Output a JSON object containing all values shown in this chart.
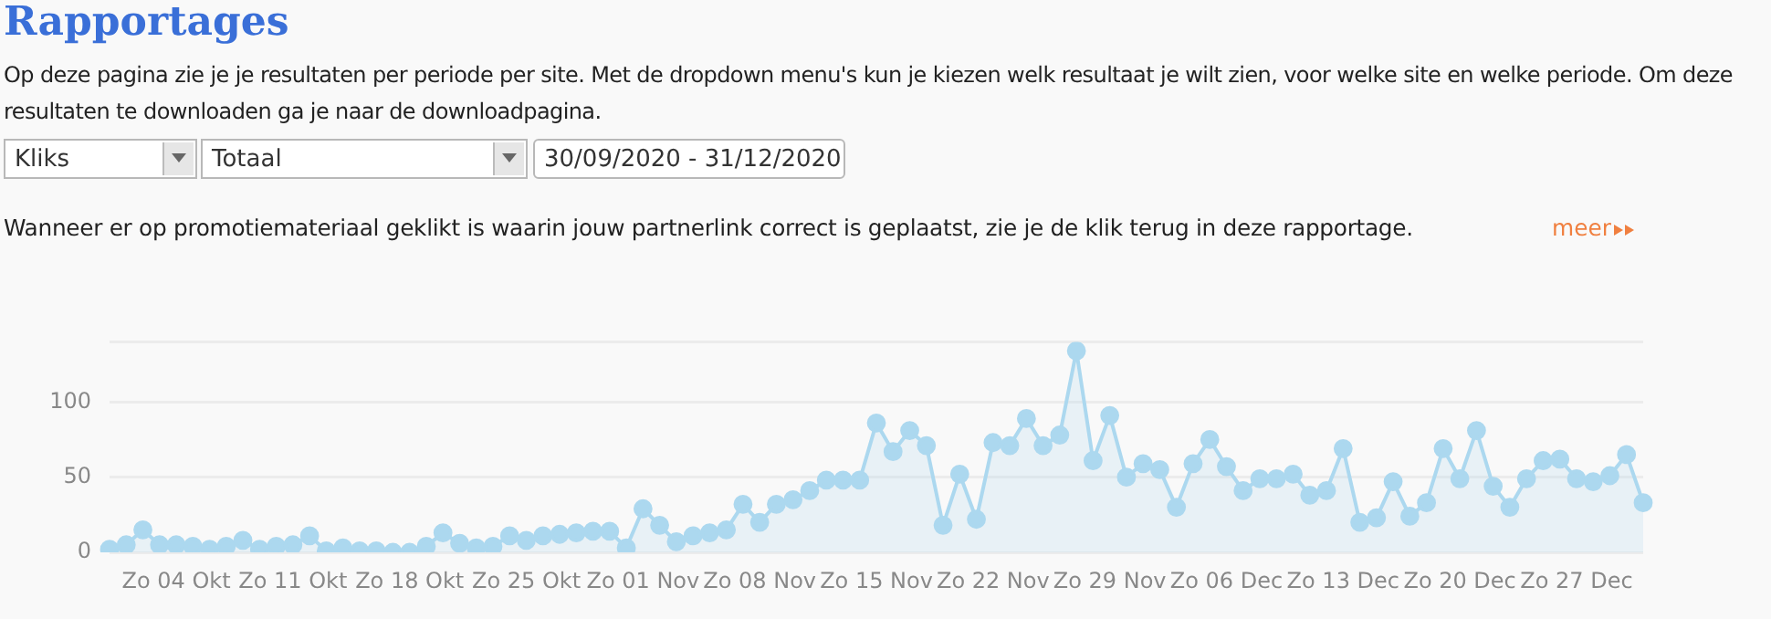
{
  "chart_data": {
    "type": "area",
    "title": "Rapportages",
    "subtitle": "Op deze pagina zie je je resultaten per periode per site. Met de dropdown menu's kun je kiezen welk resultaat je wilt zien, voor welke site en welke periode. Om deze resultaten te downloaden ga je naar de downloadpagina.",
    "annotations": [
      "Kliks",
      "Totaal",
      "30/09/2020 - 31/12/2020",
      "Wanneer er op promotiemateriaal geklikt is waarin jouw partnerlink correct is geplaatst, zie je de klik terug in deze rapportage.",
      "meer"
    ],
    "categories": [
      null,
      null,
      null,
      null,
      "Zo 04 Okt",
      null,
      null,
      null,
      null,
      null,
      null,
      "Zo 11 Okt",
      null,
      null,
      null,
      null,
      null,
      null,
      "Zo 18 Okt",
      null,
      null,
      null,
      null,
      null,
      null,
      "Zo 25 Okt",
      null,
      null,
      null,
      null,
      null,
      null,
      "Zo 01 Nov",
      null,
      null,
      null,
      null,
      null,
      null,
      "Zo 08 Nov",
      null,
      null,
      null,
      null,
      null,
      null,
      "Zo 15 Nov",
      null,
      null,
      null,
      null,
      null,
      null,
      "Zo 22 Nov",
      null,
      null,
      null,
      null,
      null,
      null,
      "Zo 29 Nov",
      null,
      null,
      null,
      null,
      null,
      null,
      "Zo 06 Dec",
      null,
      null,
      null,
      null,
      null,
      null,
      "Zo 13 Dec",
      null,
      null,
      null,
      null,
      null,
      null,
      "Zo 20 Dec",
      null,
      null,
      null,
      null,
      null,
      null,
      "Zo 27 Dec",
      null,
      null,
      null,
      null
    ],
    "series": [
      {
        "color": "#acd8ef",
        "values": [
          2,
          5,
          15,
          5,
          5,
          4,
          2,
          4,
          8,
          2,
          4,
          5,
          11,
          1,
          3,
          1,
          1,
          0,
          0,
          4,
          13,
          6,
          3,
          4,
          11,
          8,
          11,
          12,
          13,
          14,
          14,
          3,
          29,
          18,
          7,
          11,
          13,
          15,
          32,
          20,
          32,
          35,
          41,
          48,
          48,
          48,
          86,
          67,
          81,
          71,
          18,
          52,
          22,
          73,
          71,
          89,
          71,
          78,
          134,
          61,
          91,
          50,
          59,
          55,
          30,
          59,
          75,
          57,
          41,
          49,
          49,
          52,
          38,
          41,
          69,
          20,
          23,
          47,
          24,
          33,
          69,
          49,
          81,
          44,
          30,
          49,
          61,
          62,
          49,
          47,
          51,
          65,
          33
        ]
      }
    ],
    "ylim": [
      0,
      140
    ],
    "yticks": [
      0,
      50,
      100,
      {
        "value": 140,
        "label": null
      }
    ],
    "grid": "y",
    "marker": "circle",
    "legend": false
  }
}
